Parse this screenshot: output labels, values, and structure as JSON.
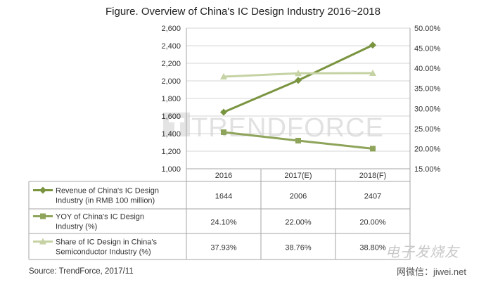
{
  "title": "Figure. Overview of China's IC Design Industry 2016~2018",
  "source": "Source: TrendForce, 2017/11",
  "watermark_text": "TRENDFORCE",
  "corner_watermark": {
    "line1": "电子发烧友",
    "line2": "网微信：jiwei.net"
  },
  "colors": {
    "revenue": "#7a9440",
    "yoy": "#8ea45a",
    "share": "#c5d2a3",
    "grid": "#d4d4d4",
    "axis": "#a6a6a6"
  },
  "chart_data": {
    "type": "line",
    "categories": [
      "2016",
      "2017(E)",
      "2018(F)"
    ],
    "left_axis": {
      "ticks": [
        "1,000",
        "1,200",
        "1,400",
        "1,600",
        "1,800",
        "2,000",
        "2,200",
        "2,400",
        "2,600"
      ],
      "ylim": [
        1000,
        2600
      ]
    },
    "right_axis": {
      "ticks": [
        "15.00%",
        "20.00%",
        "25.00%",
        "30.00%",
        "35.00%",
        "40.00%",
        "45.00%",
        "50.00%"
      ],
      "ylim": [
        15,
        50
      ]
    },
    "grid": true,
    "series": [
      {
        "name": "Revenue of China's IC Design Industry  (in RMB 100 million)",
        "label_lines": [
          "Revenue of China's IC Design",
          "Industry  (in RMB 100 million)"
        ],
        "axis": "left",
        "marker": "diamond",
        "values": [
          1644,
          2006,
          2407
        ],
        "display": [
          "1644",
          "2006",
          "2407"
        ]
      },
      {
        "name": "YOY of China's IC Design Industry (%)",
        "label_lines": [
          "YOY of China's IC Design",
          "Industry (%)"
        ],
        "axis": "right",
        "marker": "square",
        "values": [
          24.1,
          22.0,
          20.0
        ],
        "display": [
          "24.10%",
          "22.00%",
          "20.00%"
        ]
      },
      {
        "name": "Share of IC Design in China's Semiconductor Industry (%)",
        "label_lines": [
          "Share of IC Design in China's",
          "Semiconductor Industry (%)"
        ],
        "axis": "right",
        "marker": "triangle",
        "values": [
          37.93,
          38.76,
          38.8
        ],
        "display": [
          "37.93%",
          "38.76%",
          "38.80%"
        ]
      }
    ]
  }
}
